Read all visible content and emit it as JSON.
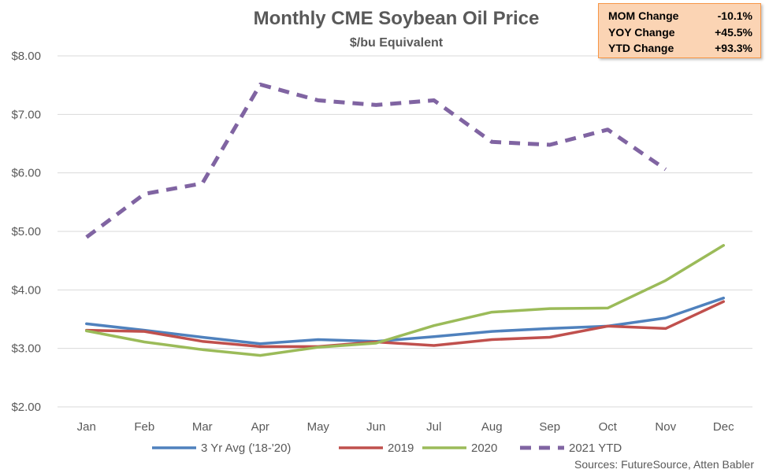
{
  "chart_data": {
    "type": "line",
    "title": "Monthly CME Soybean Oil Price",
    "subtitle": "$/bu Equivalent",
    "categories": [
      "Jan",
      "Feb",
      "Mar",
      "Apr",
      "May",
      "Jun",
      "Jul",
      "Aug",
      "Sep",
      "Oct",
      "Nov",
      "Dec"
    ],
    "ylim": [
      2,
      8
    ],
    "yticks": [
      "$2.00",
      "$3.00",
      "$4.00",
      "$5.00",
      "$6.00",
      "$7.00",
      "$8.00"
    ],
    "grid": "horizontal",
    "legend_position": "bottom",
    "series": [
      {
        "name": "3 Yr Avg ('18-'20)",
        "color": "#4f81bd",
        "dash": "solid",
        "values": [
          3.42,
          3.31,
          3.19,
          3.08,
          3.15,
          3.12,
          3.2,
          3.29,
          3.34,
          3.38,
          3.52,
          3.86
        ]
      },
      {
        "name": "2019",
        "color": "#c0504d",
        "dash": "solid",
        "values": [
          3.31,
          3.29,
          3.12,
          3.03,
          3.03,
          3.11,
          3.05,
          3.15,
          3.19,
          3.38,
          3.34,
          3.8
        ]
      },
      {
        "name": "2020",
        "color": "#9bbb59",
        "dash": "solid",
        "values": [
          3.3,
          3.11,
          2.98,
          2.88,
          3.02,
          3.09,
          3.39,
          3.62,
          3.68,
          3.69,
          4.16,
          4.76
        ]
      },
      {
        "name": "2021 YTD",
        "color": "#8064a2",
        "dash": "dashed",
        "values": [
          4.9,
          5.64,
          5.82,
          7.51,
          7.24,
          7.16,
          7.24,
          6.53,
          6.48,
          6.74,
          6.06,
          null
        ]
      }
    ],
    "annotations": {
      "source": "Sources: FutureSource, Atten Babler",
      "stats": [
        {
          "label": "MOM Change",
          "value": "-10.1%"
        },
        {
          "label": "YOY Change",
          "value": "+45.5%"
        },
        {
          "label": "YTD Change",
          "value": "+93.3%"
        }
      ]
    }
  }
}
